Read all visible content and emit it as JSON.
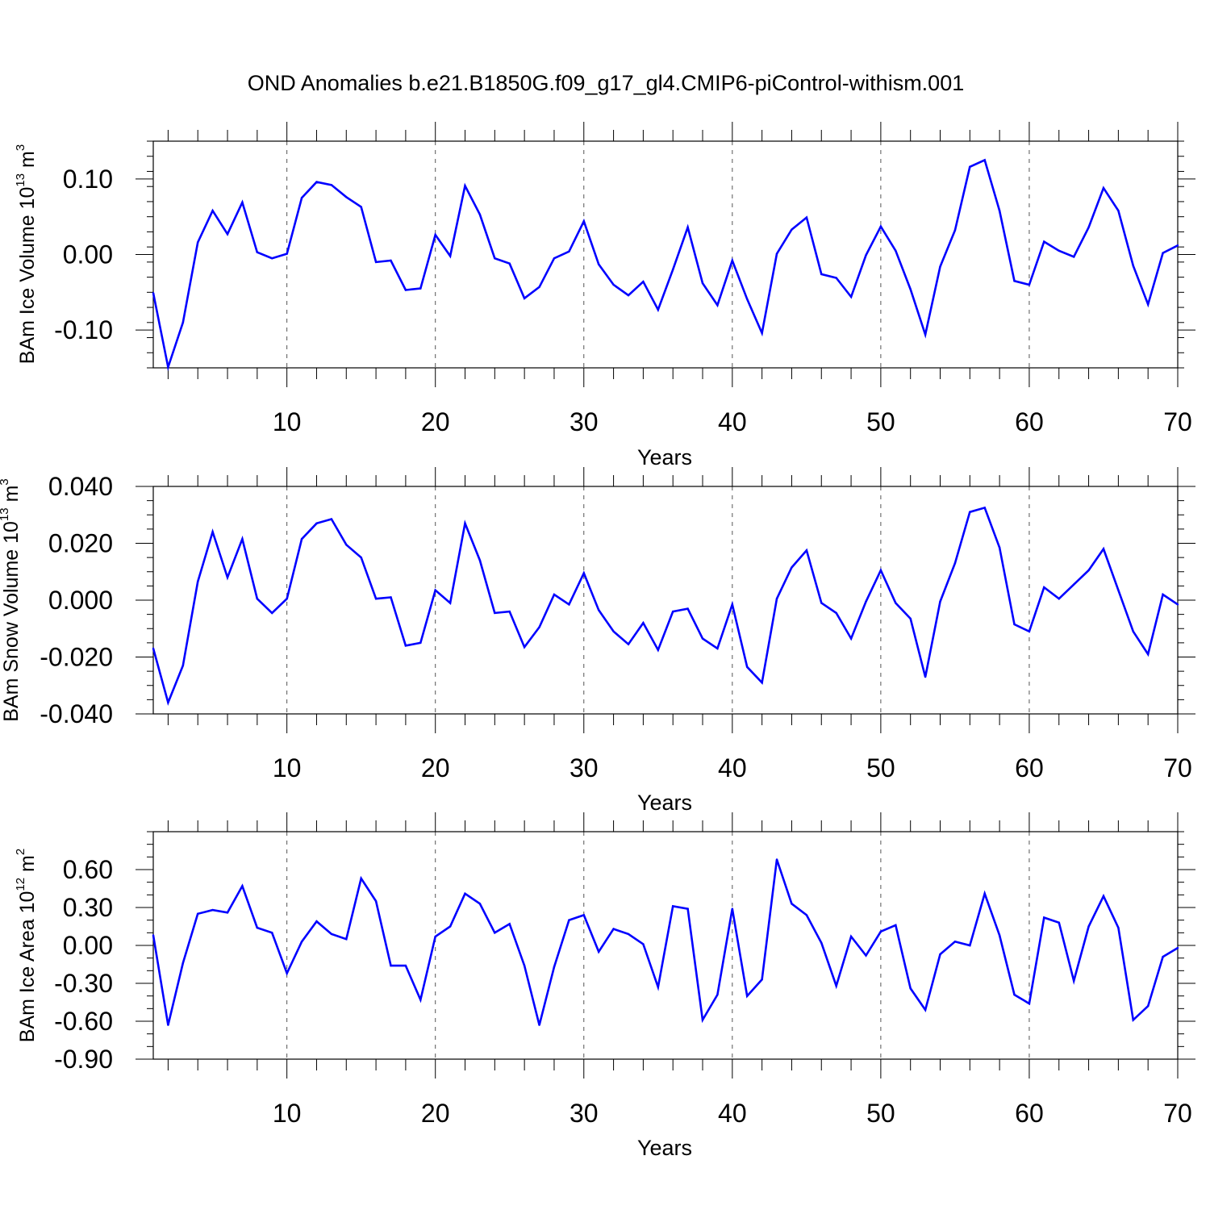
{
  "title": "OND Anomalies b.e21.B1850G.f09_g17_gl4.CMIP6-piControl-withism.001",
  "colors": {
    "line": "#0000ff",
    "axis": "#000000",
    "grid": "#555555",
    "background": "#ffffff"
  },
  "chart_data": [
    {
      "type": "line",
      "xlabel": "Years",
      "ylabel": {
        "main": "BAm Ice Volume 10",
        "exp": "13",
        "unit": " m",
        "unit_exp": "3"
      },
      "xlim": [
        1,
        70
      ],
      "ylim": [
        -0.15,
        0.15
      ],
      "xticks": [
        10,
        20,
        30,
        40,
        50,
        60,
        70
      ],
      "xtick_labels": [
        "10",
        "20",
        "30",
        "40",
        "50",
        "60",
        "70"
      ],
      "yticks": [
        -0.1,
        0.0,
        0.1
      ],
      "ytick_labels": [
        "-0.10",
        "0.00",
        "0.10"
      ],
      "yminor_step": 0.02,
      "grid": "x-dashed",
      "x": [
        1,
        2,
        3,
        4,
        5,
        6,
        7,
        8,
        9,
        10,
        11,
        12,
        13,
        14,
        15,
        16,
        17,
        18,
        19,
        20,
        21,
        22,
        23,
        24,
        25,
        26,
        27,
        28,
        29,
        30,
        31,
        32,
        33,
        34,
        35,
        36,
        37,
        38,
        39,
        40,
        41,
        42,
        43,
        44,
        45,
        46,
        47,
        48,
        49,
        50,
        51,
        52,
        53,
        54,
        55,
        56,
        57,
        58,
        59,
        60,
        61,
        62,
        63,
        64,
        65,
        66,
        67,
        68,
        69,
        70
      ],
      "series": [
        {
          "values": [
            -0.051,
            -0.149,
            -0.09,
            0.016,
            0.058,
            0.027,
            0.069,
            0.003,
            -0.005,
            0.001,
            0.075,
            0.096,
            0.092,
            0.076,
            0.063,
            -0.01,
            -0.008,
            -0.047,
            -0.045,
            0.026,
            -0.002,
            0.091,
            0.053,
            -0.005,
            -0.012,
            -0.058,
            -0.043,
            -0.005,
            0.004,
            0.044,
            -0.013,
            -0.04,
            -0.054,
            -0.036,
            -0.073,
            -0.02,
            0.036,
            -0.038,
            -0.067,
            -0.008,
            -0.059,
            -0.104,
            0.001,
            0.033,
            0.049,
            -0.026,
            -0.031,
            -0.056,
            -0.001,
            0.037,
            0.005,
            -0.046,
            -0.106,
            -0.016,
            0.032,
            0.116,
            0.125,
            0.058,
            -0.035,
            -0.04,
            0.017,
            0.005,
            -0.003,
            0.036,
            0.088,
            0.058,
            -0.015,
            -0.066,
            0.002,
            0.012
          ]
        }
      ]
    },
    {
      "type": "line",
      "xlabel": "Years",
      "ylabel": {
        "main": "BAm Snow Volume 10",
        "exp": "13",
        "unit": " m",
        "unit_exp": "3"
      },
      "xlim": [
        1,
        70
      ],
      "ylim": [
        -0.04,
        0.04
      ],
      "xticks": [
        10,
        20,
        30,
        40,
        50,
        60,
        70
      ],
      "xtick_labels": [
        "10",
        "20",
        "30",
        "40",
        "50",
        "60",
        "70"
      ],
      "yticks": [
        -0.04,
        -0.02,
        0.0,
        0.02,
        0.04
      ],
      "ytick_labels": [
        "-0.040",
        "-0.020",
        "0.000",
        "0.020",
        "0.040"
      ],
      "yminor_step": 0.005,
      "grid": "x-dashed",
      "x": [
        1,
        2,
        3,
        4,
        5,
        6,
        7,
        8,
        9,
        10,
        11,
        12,
        13,
        14,
        15,
        16,
        17,
        18,
        19,
        20,
        21,
        22,
        23,
        24,
        25,
        26,
        27,
        28,
        29,
        30,
        31,
        32,
        33,
        34,
        35,
        36,
        37,
        38,
        39,
        40,
        41,
        42,
        43,
        44,
        45,
        46,
        47,
        48,
        49,
        50,
        51,
        52,
        53,
        54,
        55,
        56,
        57,
        58,
        59,
        60,
        61,
        62,
        63,
        64,
        65,
        66,
        67,
        68,
        69,
        70
      ],
      "series": [
        {
          "values": [
            -0.017,
            -0.036,
            -0.023,
            0.0065,
            0.024,
            0.008,
            0.0215,
            0.0005,
            -0.0045,
            0.0005,
            0.0215,
            0.027,
            0.0285,
            0.0195,
            0.015,
            0.0005,
            0.001,
            -0.016,
            -0.015,
            0.0035,
            -0.001,
            0.027,
            0.014,
            -0.0045,
            -0.004,
            -0.0165,
            -0.0095,
            0.002,
            -0.0015,
            0.0095,
            -0.0035,
            -0.011,
            -0.0155,
            -0.008,
            -0.0175,
            -0.004,
            -0.003,
            -0.0135,
            -0.017,
            -0.0015,
            -0.0235,
            -0.029,
            0.0005,
            0.0115,
            0.0175,
            -0.001,
            -0.0045,
            -0.0135,
            -0.0005,
            0.0105,
            -0.001,
            -0.0065,
            -0.027,
            -0.0005,
            0.013,
            0.031,
            0.0325,
            0.0185,
            -0.0085,
            -0.011,
            0.0045,
            0.0005,
            0.0055,
            0.0105,
            0.018,
            0.0035,
            -0.011,
            -0.019,
            0.002,
            -0.0015
          ]
        }
      ]
    },
    {
      "type": "line",
      "xlabel": "Years",
      "ylabel": {
        "main": "BAm Ice Area 10",
        "exp": "12",
        "unit": " m",
        "unit_exp": "2"
      },
      "xlim": [
        1,
        70
      ],
      "ylim": [
        -0.9,
        0.9
      ],
      "xticks": [
        10,
        20,
        30,
        40,
        50,
        60,
        70
      ],
      "xtick_labels": [
        "10",
        "20",
        "30",
        "40",
        "50",
        "60",
        "70"
      ],
      "yticks": [
        -0.9,
        -0.6,
        -0.3,
        0.0,
        0.3,
        0.6
      ],
      "ytick_labels": [
        "-0.90",
        "-0.60",
        "-0.30",
        "0.00",
        "0.30",
        "0.60"
      ],
      "yminor_step": 0.1,
      "grid": "x-dashed",
      "x": [
        1,
        2,
        3,
        4,
        5,
        6,
        7,
        8,
        9,
        10,
        11,
        12,
        13,
        14,
        15,
        16,
        17,
        18,
        19,
        20,
        21,
        22,
        23,
        24,
        25,
        26,
        27,
        28,
        29,
        30,
        31,
        32,
        33,
        34,
        35,
        36,
        37,
        38,
        39,
        40,
        41,
        42,
        43,
        44,
        45,
        46,
        47,
        48,
        49,
        50,
        51,
        52,
        53,
        54,
        55,
        56,
        57,
        58,
        59,
        60,
        61,
        62,
        63,
        64,
        65,
        66,
        67,
        68,
        69,
        70
      ],
      "series": [
        {
          "values": [
            0.08,
            -0.63,
            -0.14,
            0.25,
            0.28,
            0.26,
            0.47,
            0.14,
            0.1,
            -0.22,
            0.03,
            0.19,
            0.09,
            0.05,
            0.53,
            0.35,
            -0.16,
            -0.16,
            -0.43,
            0.07,
            0.15,
            0.41,
            0.33,
            0.1,
            0.17,
            -0.16,
            -0.63,
            -0.17,
            0.2,
            0.24,
            -0.05,
            0.13,
            0.09,
            0.01,
            -0.33,
            0.31,
            0.29,
            -0.59,
            -0.39,
            0.29,
            -0.4,
            -0.27,
            0.68,
            0.33,
            0.24,
            0.02,
            -0.32,
            0.07,
            -0.08,
            0.11,
            0.16,
            -0.34,
            -0.51,
            -0.07,
            0.03,
            0.0,
            0.41,
            0.08,
            -0.39,
            -0.46,
            0.22,
            0.18,
            -0.28,
            0.15,
            0.39,
            0.14,
            -0.59,
            -0.48,
            -0.09,
            -0.02
          ]
        }
      ]
    }
  ]
}
